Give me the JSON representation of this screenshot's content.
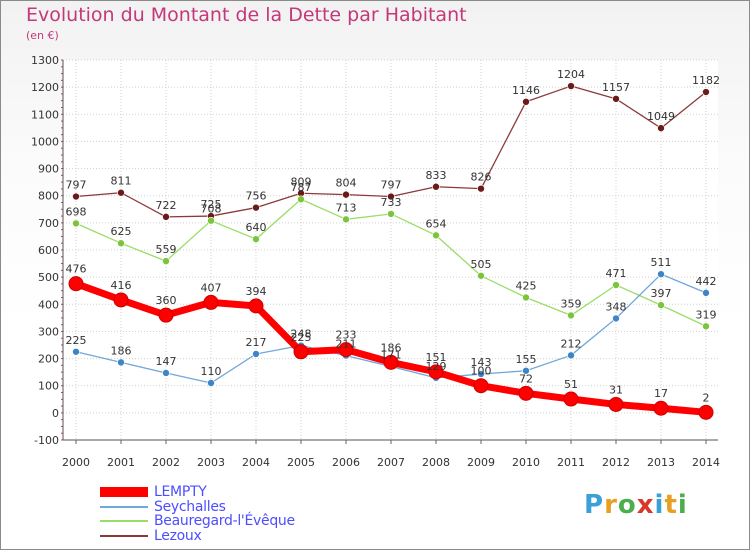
{
  "title": "Evolution du Montant de la Dette par Habitant",
  "unit": "(en €)",
  "brand": {
    "letters": [
      "P",
      "r",
      "o",
      "x",
      "i",
      "t",
      "i"
    ],
    "colors": [
      "#3aa0d8",
      "#e8a020",
      "#4cae4c",
      "#d8382a",
      "#3aa0d8",
      "#e8a020",
      "#4cae4c"
    ]
  },
  "chart_data": {
    "type": "line",
    "title": "Evolution du Montant de la Dette par Habitant",
    "ylabel": "(en €)",
    "xlabel": "",
    "x": [
      "2000",
      "2001",
      "2002",
      "2003",
      "2004",
      "2005",
      "2006",
      "2007",
      "2008",
      "2009",
      "2010",
      "2011",
      "2012",
      "2013",
      "2014"
    ],
    "y_ticks": [
      "-100",
      "0",
      "100",
      "200",
      "300",
      "400",
      "500",
      "600",
      "700",
      "800",
      "900",
      "1000",
      "1100",
      "1200",
      "1300"
    ],
    "ylim": [
      -100,
      1300
    ],
    "grid": true,
    "legend_position": "bottom-left",
    "series": [
      {
        "name": "Lezoux",
        "color": "#8b3a3a",
        "dot": "#6b1a1a",
        "values": [
          797,
          811,
          722,
          725,
          756,
          809,
          804,
          797,
          833,
          826,
          1146,
          1204,
          1157,
          1049,
          1182
        ]
      },
      {
        "name": "Beauregard-l'Évêque",
        "color": "#99dd66",
        "dot": "#7cc43c",
        "values": [
          698,
          625,
          559,
          708,
          640,
          787,
          713,
          733,
          654,
          505,
          425,
          359,
          471,
          397,
          319
        ]
      },
      {
        "name": "Seychalles",
        "color": "#6fa8dc",
        "dot": "#3d85c6",
        "values": [
          225,
          186,
          147,
          110,
          217,
          248,
          211,
          171,
          129,
          143,
          155,
          212,
          348,
          511,
          442
        ]
      },
      {
        "name": "LEMPTY",
        "color": "#ff0000",
        "dot": "#ff0000",
        "values": [
          476,
          416,
          360,
          407,
          394,
          225,
          233,
          186,
          151,
          100,
          72,
          51,
          31,
          17,
          2
        ]
      }
    ]
  }
}
